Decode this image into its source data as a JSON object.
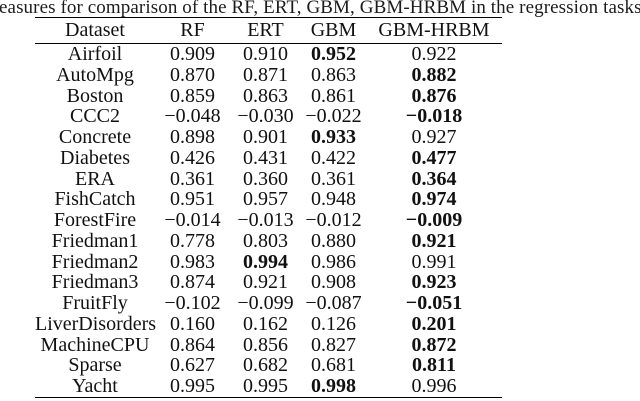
{
  "caption": "easures for comparison of the RF, ERT, GBM, GBM-HRBM in the regression tasks",
  "table": {
    "columns": [
      "Dataset",
      "RF",
      "ERT",
      "GBM",
      "GBM-HRBM"
    ],
    "rows": [
      {
        "dataset": "Airfoil",
        "values": [
          "0.909",
          "0.910",
          "0.952",
          "0.922"
        ],
        "bold": 2
      },
      {
        "dataset": "AutoMpg",
        "values": [
          "0.870",
          "0.871",
          "0.863",
          "0.882"
        ],
        "bold": 3
      },
      {
        "dataset": "Boston",
        "values": [
          "0.859",
          "0.863",
          "0.861",
          "0.876"
        ],
        "bold": 3
      },
      {
        "dataset": "CCC2",
        "values": [
          "−0.048",
          "−0.030",
          "−0.022",
          "−0.018"
        ],
        "bold": 3
      },
      {
        "dataset": "Concrete",
        "values": [
          "0.898",
          "0.901",
          "0.933",
          "0.927"
        ],
        "bold": 2
      },
      {
        "dataset": "Diabetes",
        "values": [
          "0.426",
          "0.431",
          "0.422",
          "0.477"
        ],
        "bold": 3
      },
      {
        "dataset": "ERA",
        "values": [
          "0.361",
          "0.360",
          "0.361",
          "0.364"
        ],
        "bold": 3
      },
      {
        "dataset": "FishCatch",
        "values": [
          "0.951",
          "0.957",
          "0.948",
          "0.974"
        ],
        "bold": 3
      },
      {
        "dataset": "ForestFire",
        "values": [
          "−0.014",
          "−0.013",
          "−0.012",
          "−0.009"
        ],
        "bold": 3
      },
      {
        "dataset": "Friedman1",
        "values": [
          "0.778",
          "0.803",
          "0.880",
          "0.921"
        ],
        "bold": 3
      },
      {
        "dataset": "Friedman2",
        "values": [
          "0.983",
          "0.994",
          "0.986",
          "0.991"
        ],
        "bold": 1
      },
      {
        "dataset": "Friedman3",
        "values": [
          "0.874",
          "0.921",
          "0.908",
          "0.923"
        ],
        "bold": 3
      },
      {
        "dataset": "FruitFly",
        "values": [
          "−0.102",
          "−0.099",
          "−0.087",
          "−0.051"
        ],
        "bold": 3
      },
      {
        "dataset": "LiverDisorders",
        "values": [
          "0.160",
          "0.162",
          "0.126",
          "0.201"
        ],
        "bold": 3
      },
      {
        "dataset": "MachineCPU",
        "values": [
          "0.864",
          "0.856",
          "0.827",
          "0.872"
        ],
        "bold": 3
      },
      {
        "dataset": "Sparse",
        "values": [
          "0.627",
          "0.682",
          "0.681",
          "0.811"
        ],
        "bold": 3
      },
      {
        "dataset": "Yacht",
        "values": [
          "0.995",
          "0.995",
          "0.998",
          "0.996"
        ],
        "bold": 2
      }
    ]
  },
  "colors": {
    "text": "#111111",
    "rule": "#000000",
    "background": "#ffffff"
  }
}
